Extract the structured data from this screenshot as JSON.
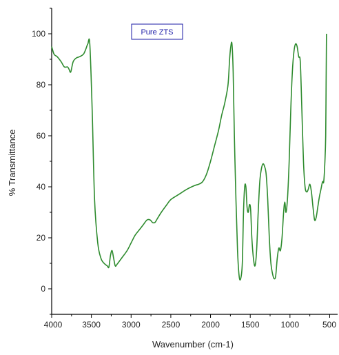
{
  "chart_data": {
    "type": "line",
    "xlabel": "Wavenumber (cm-1)",
    "ylabel": "% Transmittance",
    "xlim": [
      4000,
      400
    ],
    "x_reversed": true,
    "ylim": [
      -10,
      110
    ],
    "x_ticks": [
      4000,
      3500,
      3000,
      2500,
      2000,
      1500,
      1000,
      500
    ],
    "y_ticks": [
      0,
      20,
      40,
      60,
      80,
      100
    ],
    "grid": false,
    "legend_position": "top-center",
    "series": [
      {
        "name": "Pure ZTS",
        "color": "#2e8b2e",
        "points": [
          [
            4000,
            95
          ],
          [
            3970,
            92
          ],
          [
            3930,
            91
          ],
          [
            3880,
            89
          ],
          [
            3840,
            87
          ],
          [
            3800,
            87
          ],
          [
            3780,
            86
          ],
          [
            3760,
            85
          ],
          [
            3730,
            89
          ],
          [
            3690,
            90.5
          ],
          [
            3650,
            91
          ],
          [
            3600,
            92
          ],
          [
            3570,
            94
          ],
          [
            3545,
            96
          ],
          [
            3520,
            96
          ],
          [
            3490,
            70
          ],
          [
            3460,
            35
          ],
          [
            3420,
            18
          ],
          [
            3380,
            12
          ],
          [
            3340,
            10
          ],
          [
            3300,
            9
          ],
          [
            3280,
            8.5
          ],
          [
            3260,
            13
          ],
          [
            3240,
            15
          ],
          [
            3220,
            12
          ],
          [
            3200,
            9
          ],
          [
            3180,
            9.5
          ],
          [
            3120,
            12
          ],
          [
            3050,
            15
          ],
          [
            3000,
            18
          ],
          [
            2950,
            21
          ],
          [
            2900,
            23
          ],
          [
            2850,
            25
          ],
          [
            2800,
            27
          ],
          [
            2760,
            27
          ],
          [
            2730,
            26
          ],
          [
            2700,
            26
          ],
          [
            2670,
            27.5
          ],
          [
            2620,
            30
          ],
          [
            2550,
            33
          ],
          [
            2500,
            35
          ],
          [
            2400,
            37
          ],
          [
            2300,
            39
          ],
          [
            2200,
            40.5
          ],
          [
            2150,
            41
          ],
          [
            2100,
            42
          ],
          [
            2050,
            45
          ],
          [
            2000,
            50
          ],
          [
            1950,
            56
          ],
          [
            1900,
            62
          ],
          [
            1860,
            68
          ],
          [
            1820,
            73
          ],
          [
            1780,
            80
          ],
          [
            1760,
            90
          ],
          [
            1745,
            95
          ],
          [
            1730,
            96
          ],
          [
            1715,
            85
          ],
          [
            1700,
            60
          ],
          [
            1680,
            35
          ],
          [
            1660,
            15
          ],
          [
            1640,
            5
          ],
          [
            1620,
            4
          ],
          [
            1600,
            10
          ],
          [
            1585,
            30
          ],
          [
            1570,
            40
          ],
          [
            1555,
            40
          ],
          [
            1540,
            32
          ],
          [
            1525,
            30
          ],
          [
            1510,
            33
          ],
          [
            1495,
            31
          ],
          [
            1480,
            20
          ],
          [
            1460,
            12
          ],
          [
            1440,
            9
          ],
          [
            1420,
            15
          ],
          [
            1400,
            30
          ],
          [
            1380,
            42
          ],
          [
            1360,
            47
          ],
          [
            1340,
            49
          ],
          [
            1320,
            48
          ],
          [
            1300,
            45
          ],
          [
            1280,
            35
          ],
          [
            1260,
            20
          ],
          [
            1240,
            10
          ],
          [
            1220,
            6
          ],
          [
            1200,
            4
          ],
          [
            1180,
            5
          ],
          [
            1160,
            12
          ],
          [
            1140,
            16
          ],
          [
            1120,
            15
          ],
          [
            1100,
            20
          ],
          [
            1080,
            30
          ],
          [
            1065,
            34
          ],
          [
            1050,
            30
          ],
          [
            1030,
            36
          ],
          [
            1010,
            50
          ],
          [
            990,
            70
          ],
          [
            970,
            85
          ],
          [
            950,
            93
          ],
          [
            930,
            96
          ],
          [
            910,
            95
          ],
          [
            890,
            91
          ],
          [
            870,
            89
          ],
          [
            850,
            70
          ],
          [
            830,
            50
          ],
          [
            810,
            40
          ],
          [
            790,
            38
          ],
          [
            770,
            39
          ],
          [
            750,
            41
          ],
          [
            730,
            38
          ],
          [
            710,
            32
          ],
          [
            690,
            27
          ],
          [
            670,
            28
          ],
          [
            650,
            32
          ],
          [
            630,
            36
          ],
          [
            610,
            39
          ],
          [
            590,
            42
          ],
          [
            575,
            42
          ],
          [
            560,
            50
          ],
          [
            550,
            60
          ],
          [
            545,
            80
          ],
          [
            540,
            100
          ]
        ]
      }
    ]
  }
}
